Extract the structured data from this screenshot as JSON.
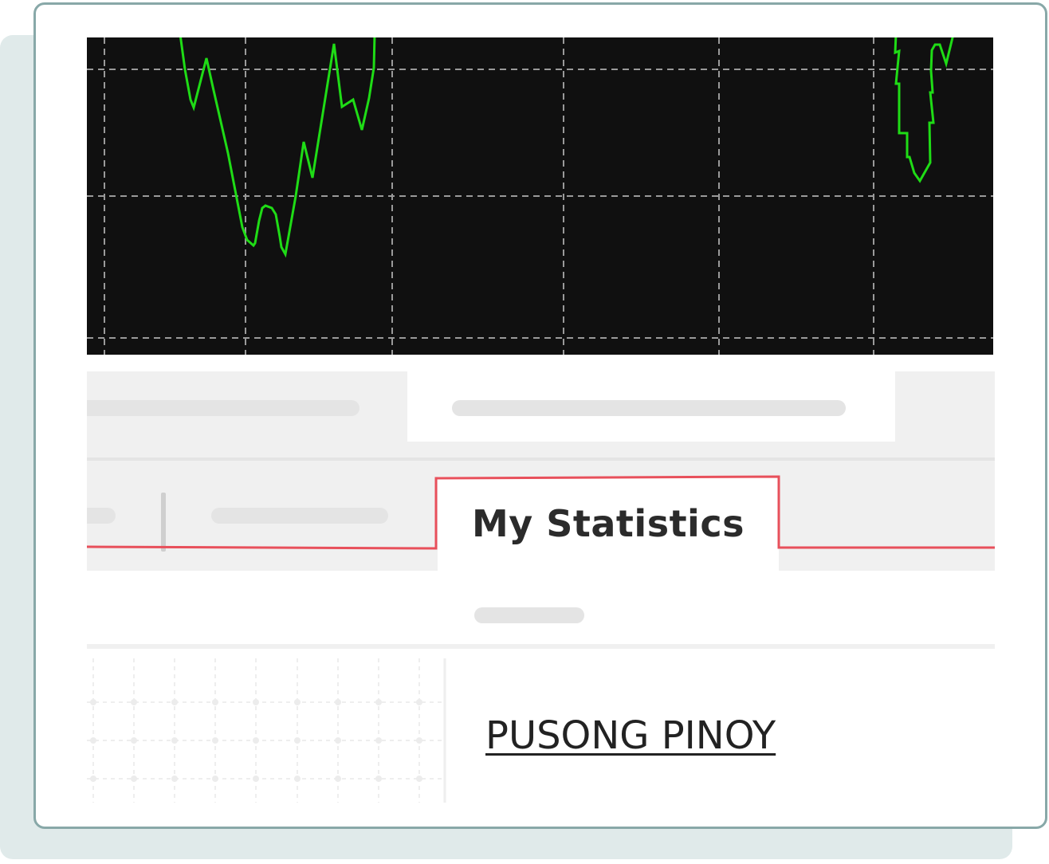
{
  "tabs": {
    "active_label": "My Statistics"
  },
  "link": {
    "label": "PUSONG PINOY"
  },
  "colors": {
    "accent_border": "#e8505b",
    "chart_line": "#1fdc16",
    "chart_background": "#101010",
    "card_border": "#88a8a8"
  }
}
